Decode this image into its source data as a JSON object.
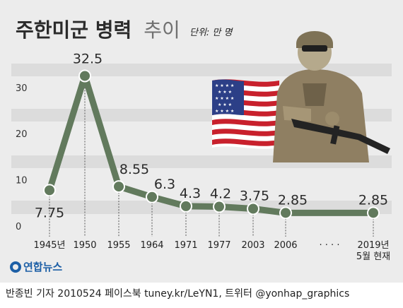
{
  "title": {
    "bold": "주한미군 병력",
    "light": "추이"
  },
  "unit": "단위: 만 명",
  "colors": {
    "line": "#627a5d",
    "band": "#dcdcdc",
    "background": "#ececec"
  },
  "chart_data": {
    "type": "line",
    "categories": [
      "1945년",
      "1950",
      "1955",
      "1964",
      "1971",
      "1977",
      "2003",
      "2006",
      "2019년 5월 현재"
    ],
    "values": [
      7.75,
      32.5,
      8.55,
      6.3,
      4.3,
      4.2,
      3.75,
      2.85,
      2.85
    ],
    "data_labels": [
      "7.75",
      "32.5",
      "8.55",
      "6.3",
      "4.3",
      "4.2",
      "3.75",
      "2.85",
      "2.85"
    ],
    "x_tick_labels": [
      [
        "1945년"
      ],
      [
        "1950"
      ],
      [
        "1955"
      ],
      [
        "1964"
      ],
      [
        "1971"
      ],
      [
        "1977"
      ],
      [
        "2003"
      ],
      [
        "2006"
      ],
      [
        "2019년",
        "5월 현재"
      ]
    ],
    "gap_marker": "· · · ·",
    "yticks": [
      0,
      10,
      20,
      30
    ],
    "ylim": [
      0,
      35
    ],
    "grid": "alternating horizontal bands",
    "legend": "none"
  },
  "illustrations": [
    "soldier-illustration",
    "us-flag-illustration"
  ],
  "brand": {
    "name": "연합뉴스"
  },
  "footer": "반종빈 기자 2010524  페이스북 tuney.kr/LeYN1, 트위터 @yonhap_graphics"
}
